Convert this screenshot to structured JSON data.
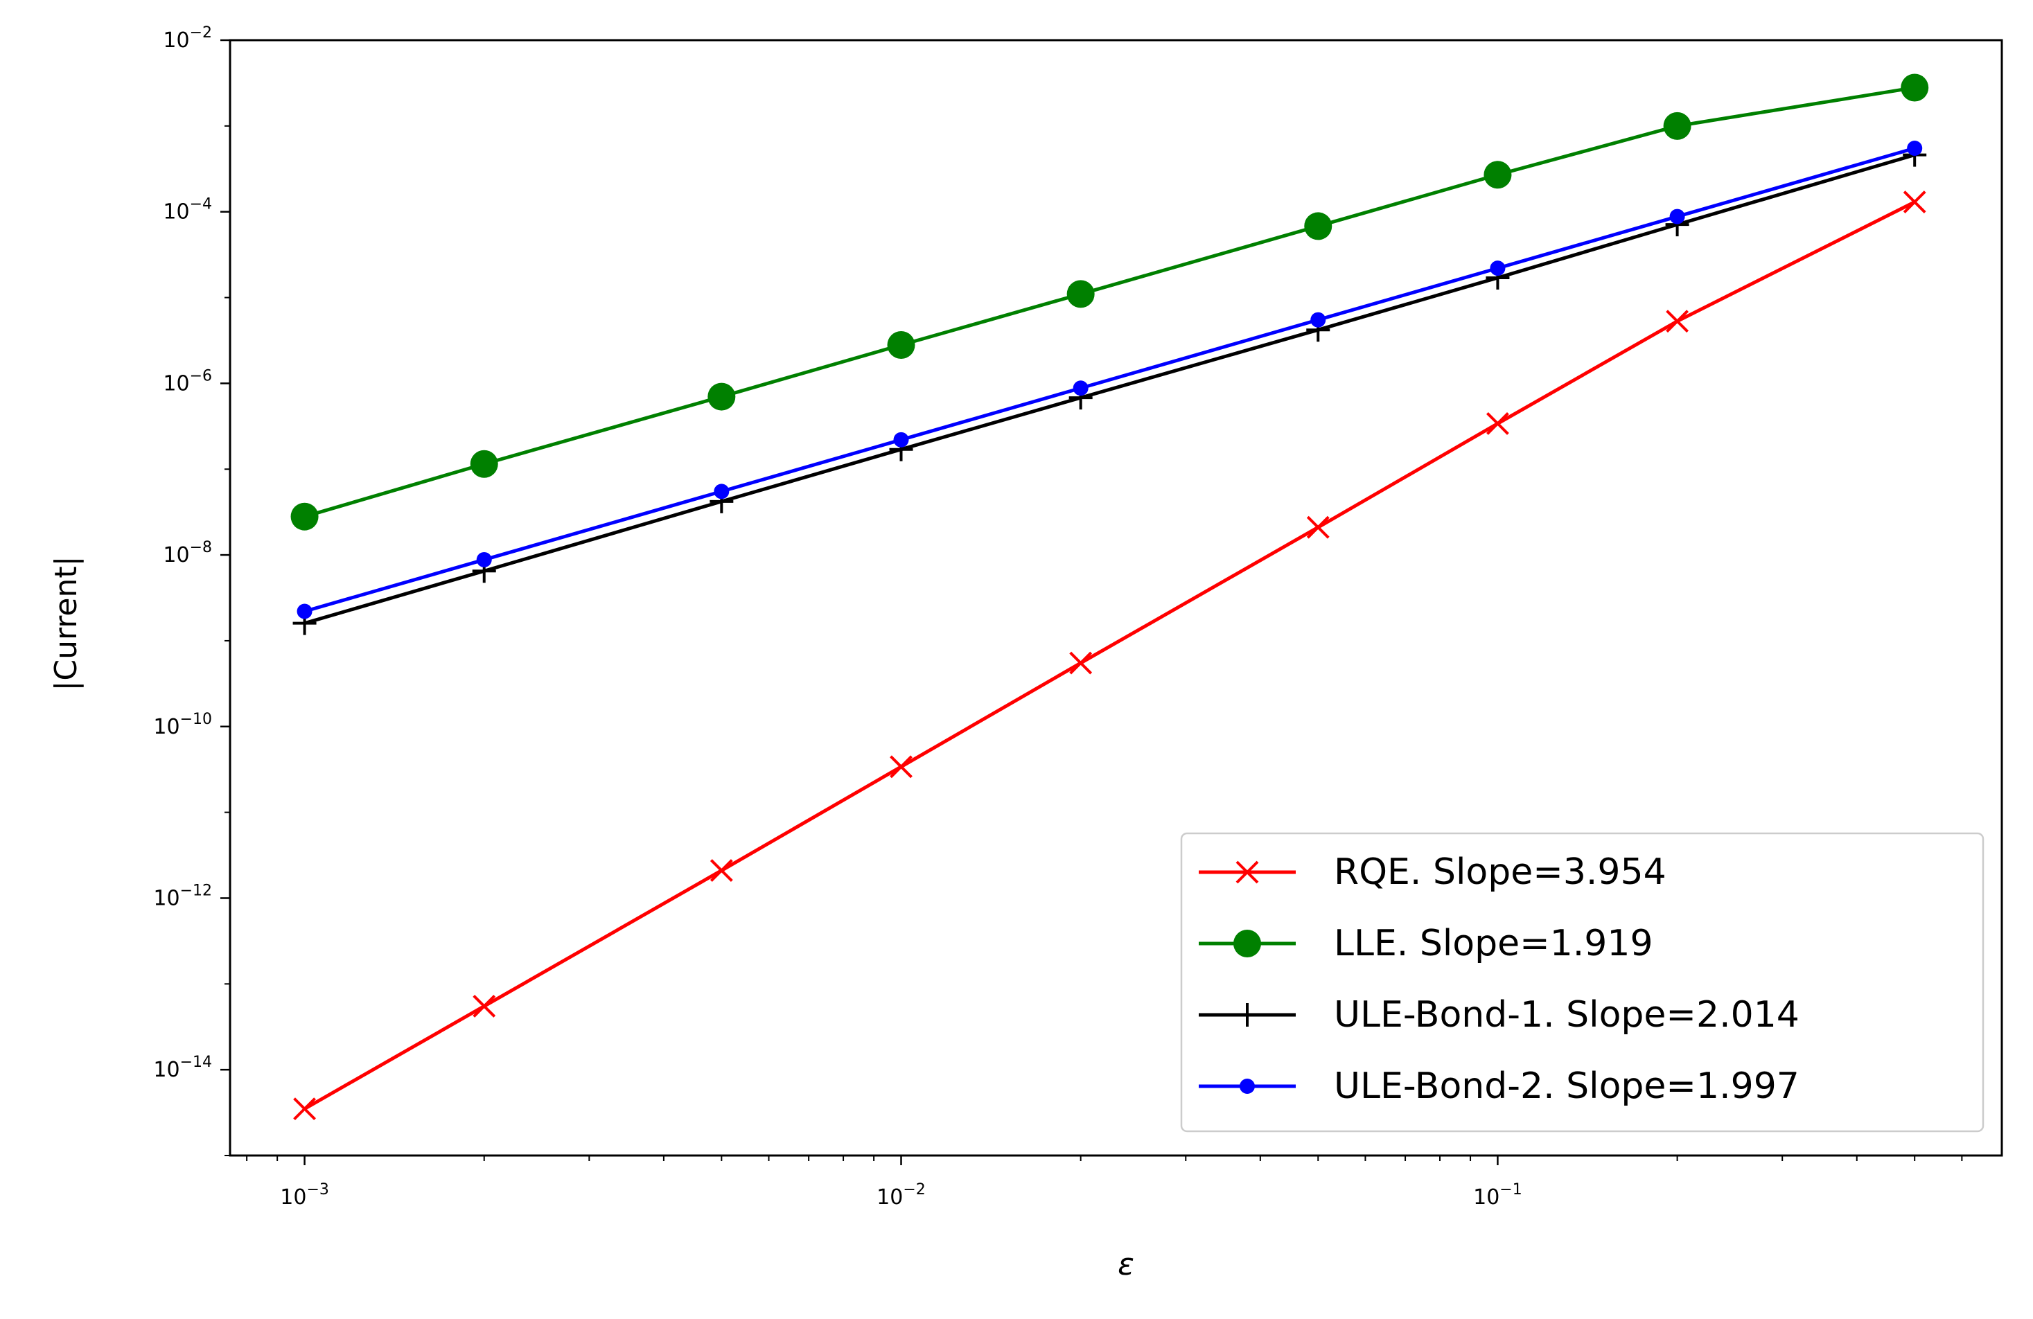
{
  "chart_data": {
    "type": "line",
    "title": "",
    "xlabel": "ε",
    "ylabel": "|Current|",
    "xscale": "log",
    "yscale": "log",
    "xlim": [
      0.00075,
      0.7
    ],
    "ylim": [
      1e-15,
      0.01
    ],
    "grid": false,
    "legend_position": "lower-right",
    "x": [
      0.001,
      0.002,
      0.005,
      0.01,
      0.02,
      0.05,
      0.1,
      0.2,
      0.5
    ],
    "x_ticks": [
      {
        "value": 0.001,
        "label": "10",
        "exp": "−3"
      },
      {
        "value": 0.01,
        "label": "10",
        "exp": "−2"
      },
      {
        "value": 0.1,
        "label": "10",
        "exp": "−1"
      }
    ],
    "y_ticks": [
      {
        "value": 0.01,
        "label": "10",
        "exp": "−2"
      },
      {
        "value": 0.0001,
        "label": "10",
        "exp": "−4"
      },
      {
        "value": 1e-06,
        "label": "10",
        "exp": "−6"
      },
      {
        "value": 1e-08,
        "label": "10",
        "exp": "−8"
      },
      {
        "value": 1e-10,
        "label": "10",
        "exp": "−10"
      },
      {
        "value": 1e-12,
        "label": "10",
        "exp": "−12"
      },
      {
        "value": 1e-14,
        "label": "10",
        "exp": "−14"
      }
    ],
    "series": [
      {
        "name": "RQE. Slope=3.954",
        "color": "#ff0000",
        "marker": "x",
        "values": [
          3.5e-15,
          5.5e-14,
          2.1e-12,
          3.4e-11,
          5.5e-10,
          2.1e-08,
          3.4e-07,
          5.3e-06,
          0.00013
        ]
      },
      {
        "name": "LLE. Slope=1.919",
        "color": "#008000",
        "marker": "circle",
        "values": [
          2.8e-08,
          1.15e-07,
          7e-07,
          2.8e-06,
          1.1e-05,
          6.8e-05,
          0.00027,
          0.001,
          0.0028
        ]
      },
      {
        "name": "ULE-Bond-1. Slope=2.014",
        "color": "#000000",
        "marker": "plus",
        "values": [
          1.6e-09,
          6.5e-09,
          4.2e-08,
          1.7e-07,
          6.8e-07,
          4.2e-06,
          1.7e-05,
          7.1e-05,
          0.00046
        ]
      },
      {
        "name": "ULE-Bond-2. Slope=1.997",
        "color": "#0000ff",
        "marker": "dot",
        "values": [
          2.2e-09,
          8.8e-09,
          5.5e-08,
          2.2e-07,
          8.8e-07,
          5.5e-06,
          2.2e-05,
          8.8e-05,
          0.00055
        ]
      }
    ]
  }
}
